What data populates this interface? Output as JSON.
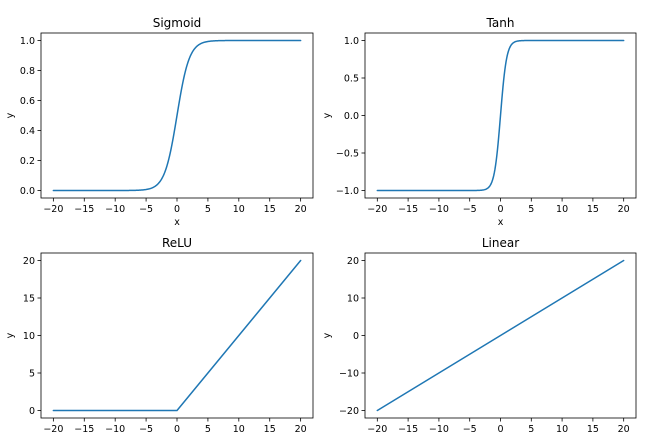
{
  "chart_data": [
    {
      "type": "line",
      "title": "Sigmoid",
      "xlabel": "x",
      "ylabel": "y",
      "function": "sigmoid",
      "x_range": [
        -20,
        20
      ],
      "xlim": [
        -22,
        22
      ],
      "ylim": [
        -0.05,
        1.05
      ],
      "xticks": [
        -20,
        -15,
        -10,
        -5,
        0,
        5,
        10,
        15,
        20
      ],
      "xtick_labels": [
        "−20",
        "−15",
        "−10",
        "−5",
        "0",
        "5",
        "10",
        "15",
        "20"
      ],
      "yticks": [
        0.0,
        0.2,
        0.4,
        0.6,
        0.8,
        1.0
      ],
      "ytick_labels": [
        "0.0",
        "0.2",
        "0.4",
        "0.6",
        "0.8",
        "1.0"
      ],
      "color": "#1f77b4",
      "grid": false
    },
    {
      "type": "line",
      "title": "Tanh",
      "xlabel": "x",
      "ylabel": "y",
      "function": "tanh",
      "x_range": [
        -20,
        20
      ],
      "xlim": [
        -22,
        22
      ],
      "ylim": [
        -1.1,
        1.1
      ],
      "xticks": [
        -20,
        -15,
        -10,
        -5,
        0,
        5,
        10,
        15,
        20
      ],
      "xtick_labels": [
        "−20",
        "−15",
        "−10",
        "−5",
        "0",
        "5",
        "10",
        "15",
        "20"
      ],
      "yticks": [
        -1.0,
        -0.5,
        0.0,
        0.5,
        1.0
      ],
      "ytick_labels": [
        "−1.0",
        "−0.5",
        "0.0",
        "0.5",
        "1.0"
      ],
      "color": "#1f77b4",
      "grid": false
    },
    {
      "type": "line",
      "title": "ReLU",
      "xlabel": "x",
      "ylabel": "y",
      "function": "relu",
      "x_range": [
        -20,
        20
      ],
      "xlim": [
        -22,
        22
      ],
      "ylim": [
        -1,
        21
      ],
      "xticks": [
        -20,
        -15,
        -10,
        -5,
        0,
        5,
        10,
        15,
        20
      ],
      "xtick_labels": [
        "−20",
        "−15",
        "−10",
        "−5",
        "0",
        "5",
        "10",
        "15",
        "20"
      ],
      "yticks": [
        0,
        5,
        10,
        15,
        20
      ],
      "ytick_labels": [
        "0",
        "5",
        "10",
        "15",
        "20"
      ],
      "color": "#1f77b4",
      "grid": false
    },
    {
      "type": "line",
      "title": "Linear",
      "xlabel": "x",
      "ylabel": "y",
      "function": "linear",
      "x_range": [
        -20,
        20
      ],
      "xlim": [
        -22,
        22
      ],
      "ylim": [
        -22,
        22
      ],
      "xticks": [
        -20,
        -15,
        -10,
        -5,
        0,
        5,
        10,
        15,
        20
      ],
      "xtick_labels": [
        "−20",
        "−15",
        "−10",
        "−5",
        "0",
        "5",
        "10",
        "15",
        "20"
      ],
      "yticks": [
        -20,
        -10,
        0,
        10,
        20
      ],
      "ytick_labels": [
        "−20",
        "−10",
        "0",
        "10",
        "20"
      ],
      "color": "#1f77b4",
      "grid": false
    }
  ]
}
